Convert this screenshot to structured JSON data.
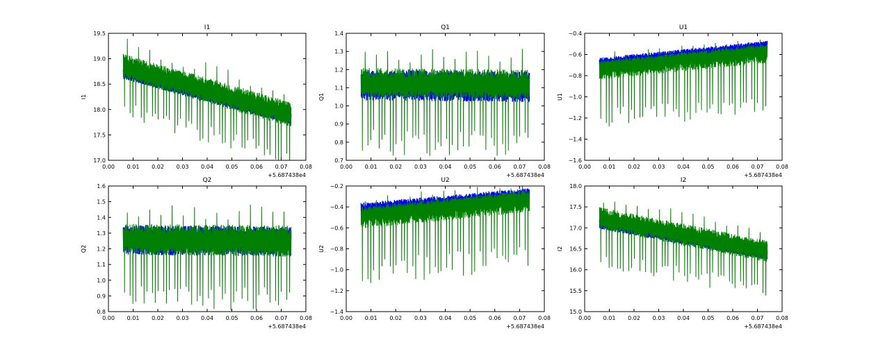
{
  "figure": {
    "background": "#ffffff"
  },
  "chart_data": [
    {
      "type": "line",
      "title": "I1",
      "xlabel": "",
      "ylabel": "I1",
      "xlim": [
        0.0,
        0.08
      ],
      "ylim": [
        17.0,
        19.5
      ],
      "xticks": [
        "0.00",
        "0.01",
        "0.02",
        "0.03",
        "0.04",
        "0.05",
        "0.06",
        "0.07",
        "0.08"
      ],
      "yticks": [
        "17.0",
        "17.5",
        "18.0",
        "18.5",
        "19.0",
        "19.5"
      ],
      "offset_label": "+5.687438e4",
      "grid": false,
      "series": [
        {
          "name": "blue",
          "color": "#0000ff",
          "x_range": [
            0.006,
            0.074
          ],
          "start": 18.7,
          "end": 17.8,
          "spread_low": 0.1,
          "spread_high": 0.12
        },
        {
          "name": "green",
          "color": "#008000",
          "x_range": [
            0.006,
            0.074
          ],
          "start": 18.85,
          "end": 17.9,
          "spread_low": 0.25,
          "spread_high": 0.25,
          "spike_depth": 0.8
        }
      ]
    },
    {
      "type": "line",
      "title": "Q1",
      "xlabel": "",
      "ylabel": "Q1",
      "xlim": [
        0.0,
        0.08
      ],
      "ylim": [
        0.7,
        1.4
      ],
      "xticks": [
        "0.00",
        "0.01",
        "0.02",
        "0.03",
        "0.04",
        "0.05",
        "0.06",
        "0.07",
        "0.08"
      ],
      "yticks": [
        "0.7",
        "0.8",
        "0.9",
        "1.0",
        "1.1",
        "1.2",
        "1.3",
        "1.4"
      ],
      "offset_label": "+5.687438e4",
      "grid": false,
      "series": [
        {
          "name": "blue",
          "color": "#0000ff",
          "x_range": [
            0.006,
            0.074
          ],
          "start": 1.11,
          "end": 1.1,
          "spread_low": 0.08,
          "spread_high": 0.09
        },
        {
          "name": "green",
          "color": "#008000",
          "x_range": [
            0.006,
            0.074
          ],
          "start": 1.12,
          "end": 1.11,
          "spread_low": 0.07,
          "spread_high": 0.09,
          "spike_depth": 0.33
        }
      ]
    },
    {
      "type": "line",
      "title": "U1",
      "xlabel": "",
      "ylabel": "U1",
      "xlim": [
        0.0,
        0.08
      ],
      "ylim": [
        -1.6,
        -0.4
      ],
      "xticks": [
        "0.00",
        "0.01",
        "0.02",
        "0.03",
        "0.04",
        "0.05",
        "0.06",
        "0.07",
        "0.08"
      ],
      "yticks": [
        "−1.6",
        "−1.4",
        "−1.2",
        "−1.0",
        "−0.8",
        "−0.6",
        "−0.4"
      ],
      "offset_label": "+5.687438e4",
      "grid": false,
      "series": [
        {
          "name": "blue",
          "color": "#0000ff",
          "x_range": [
            0.006,
            0.074
          ],
          "start": -0.68,
          "end": -0.52,
          "spread_low": 0.08,
          "spread_high": 0.05
        },
        {
          "name": "green",
          "color": "#008000",
          "x_range": [
            0.006,
            0.074
          ],
          "start": -0.72,
          "end": -0.56,
          "spread_low": 0.12,
          "spread_high": 0.06,
          "spike_depth": 0.5
        }
      ]
    },
    {
      "type": "line",
      "title": "Q2",
      "xlabel": "",
      "ylabel": "Q2",
      "xlim": [
        0.0,
        0.08
      ],
      "ylim": [
        0.8,
        1.6
      ],
      "xticks": [
        "0.00",
        "0.01",
        "0.02",
        "0.03",
        "0.04",
        "0.05",
        "0.06",
        "0.07",
        "0.08"
      ],
      "yticks": [
        "0.8",
        "0.9",
        "1.0",
        "1.1",
        "1.2",
        "1.3",
        "1.4",
        "1.5",
        "1.6"
      ],
      "offset_label": "+5.687438e4",
      "grid": false,
      "series": [
        {
          "name": "blue",
          "color": "#0000ff",
          "x_range": [
            0.006,
            0.074
          ],
          "start": 1.27,
          "end": 1.26,
          "spread_low": 0.11,
          "spread_high": 0.08
        },
        {
          "name": "green",
          "color": "#008000",
          "x_range": [
            0.006,
            0.074
          ],
          "start": 1.26,
          "end": 1.25,
          "spread_low": 0.1,
          "spread_high": 0.1,
          "spike_depth": 0.35
        }
      ]
    },
    {
      "type": "line",
      "title": "U2",
      "xlabel": "",
      "ylabel": "U2",
      "xlim": [
        0.0,
        0.08
      ],
      "ylim": [
        -1.4,
        -0.2
      ],
      "xticks": [
        "0.00",
        "0.01",
        "0.02",
        "0.03",
        "0.04",
        "0.05",
        "0.06",
        "0.07",
        "0.08"
      ],
      "yticks": [
        "−1.4",
        "−1.2",
        "−1.0",
        "−0.8",
        "−0.6",
        "−0.4",
        "−0.2"
      ],
      "offset_label": "+5.687438e4",
      "grid": false,
      "series": [
        {
          "name": "blue",
          "color": "#0000ff",
          "x_range": [
            0.006,
            0.074
          ],
          "start": -0.43,
          "end": -0.29,
          "spread_low": 0.07,
          "spread_high": 0.07
        },
        {
          "name": "green",
          "color": "#008000",
          "x_range": [
            0.006,
            0.074
          ],
          "start": -0.47,
          "end": -0.31,
          "spread_low": 0.14,
          "spread_high": 0.07,
          "spike_depth": 0.55
        }
      ]
    },
    {
      "type": "line",
      "title": "I2",
      "xlabel": "",
      "ylabel": "I2",
      "xlim": [
        0.0,
        0.08
      ],
      "ylim": [
        15.0,
        18.0
      ],
      "xticks": [
        "0.00",
        "0.01",
        "0.02",
        "0.03",
        "0.04",
        "0.05",
        "0.06",
        "0.07",
        "0.08"
      ],
      "yticks": [
        "15.0",
        "15.5",
        "16.0",
        "16.5",
        "17.0",
        "17.5",
        "18.0"
      ],
      "offset_label": "+5.687438e4",
      "grid": false,
      "series": [
        {
          "name": "blue",
          "color": "#0000ff",
          "x_range": [
            0.006,
            0.074
          ],
          "start": 17.1,
          "end": 16.35,
          "spread_low": 0.12,
          "spread_high": 0.12
        },
        {
          "name": "green",
          "color": "#008000",
          "x_range": [
            0.006,
            0.074
          ],
          "start": 17.25,
          "end": 16.45,
          "spread_low": 0.28,
          "spread_high": 0.25,
          "spike_depth": 0.9
        }
      ]
    }
  ]
}
